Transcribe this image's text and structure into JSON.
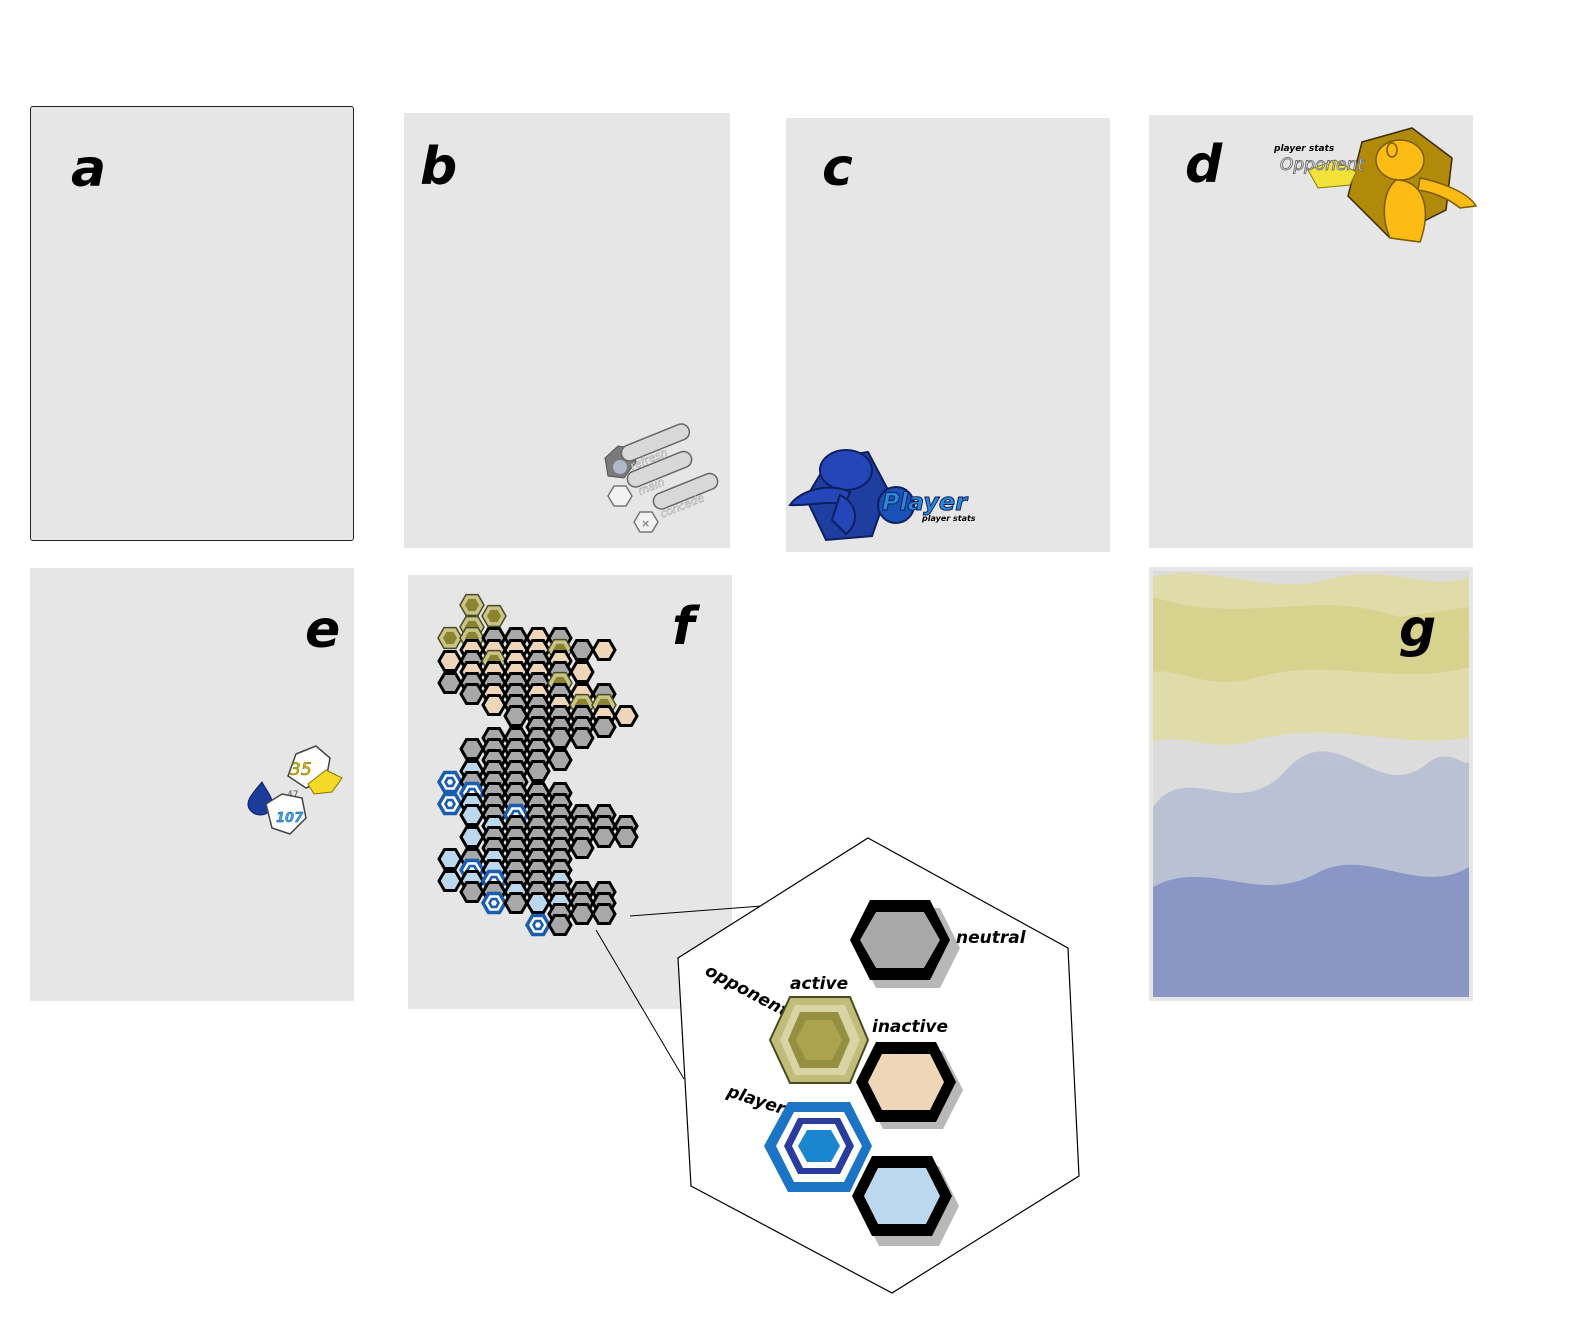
{
  "panels": {
    "a": {
      "letter": "a"
    },
    "b": {
      "letter": "b",
      "buttons": [
        "refresh",
        "main",
        "concede"
      ]
    },
    "c": {
      "letter": "c",
      "title": "Player",
      "subtitle": "player stats"
    },
    "d": {
      "letter": "d",
      "title": "Opponent",
      "subtitle": "player stats"
    },
    "e": {
      "letter": "e",
      "top_value": "35",
      "mid_value": "47",
      "bottom_value": "107"
    },
    "f": {
      "letter": "f"
    },
    "g": {
      "letter": "g"
    }
  },
  "legend": {
    "neutral": "neutral",
    "active": "active",
    "inactive": "inactive",
    "opponent": "opponent",
    "player": "player"
  },
  "colors": {
    "panel_bg": "#e6e6e6",
    "player_blue": "#1a5cb0",
    "player_light": "#bcd8ee",
    "opponent_olive": "#8a8430",
    "opponent_light": "#c8c48a",
    "inactive_tan": "#f0d6b8",
    "neutral_gray": "#a8a8a8",
    "opponent_gold": "#f5b800"
  },
  "icons": [
    "refresh-icon",
    "home-icon",
    "close-icon",
    "drop-icon",
    "avatar-icon"
  ]
}
